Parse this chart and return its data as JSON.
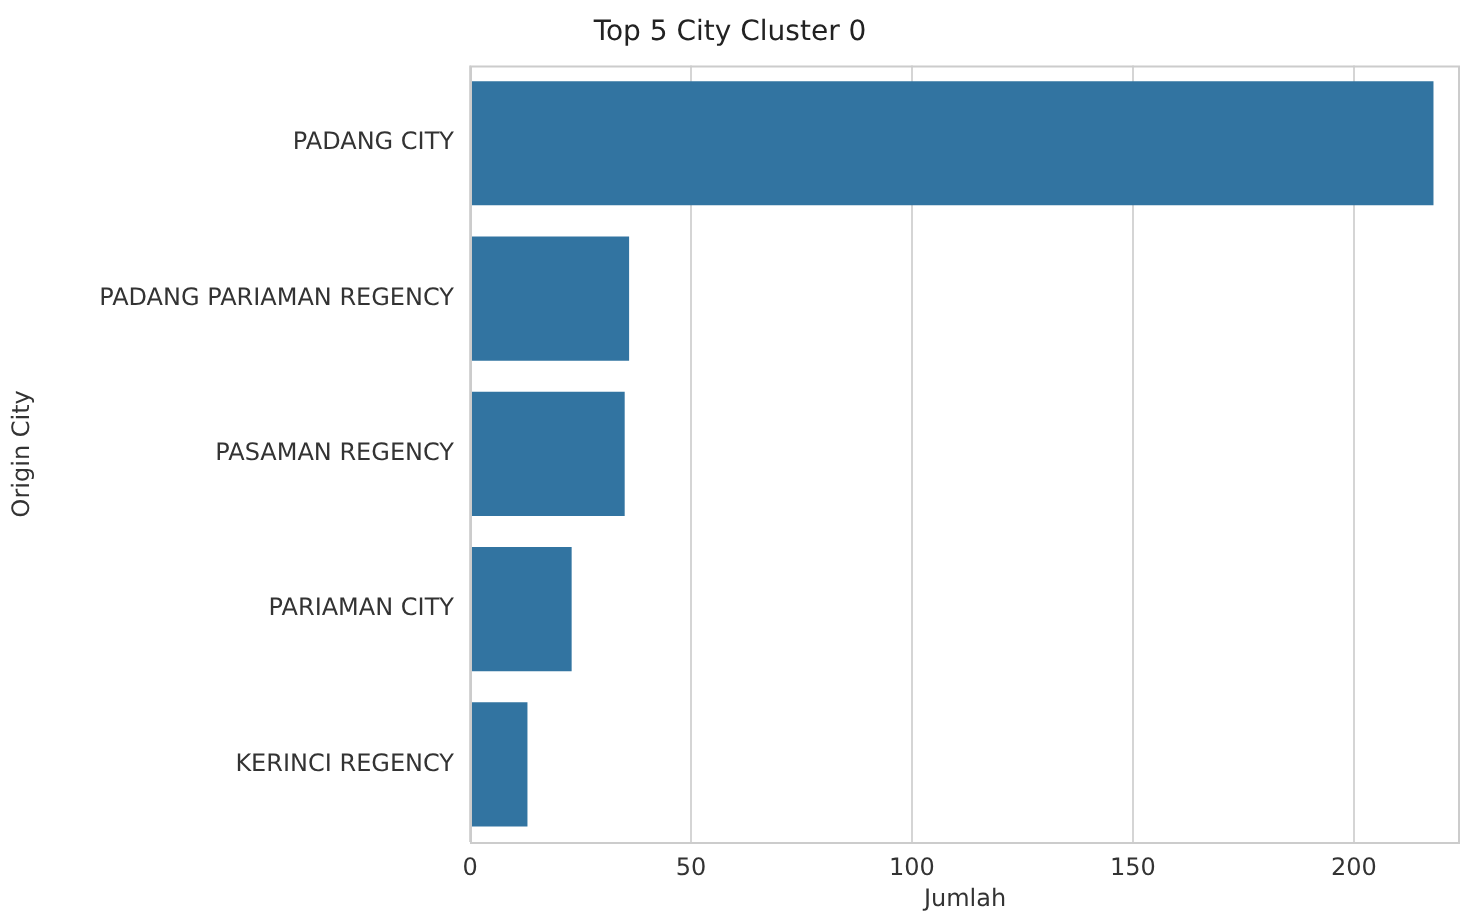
{
  "chart_data": {
    "type": "bar",
    "orientation": "horizontal",
    "title": "Top 5 City Cluster 0",
    "xlabel": "Jumlah",
    "ylabel": "Origin City",
    "categories": [
      "PADANG CITY",
      "PADANG PARIAMAN REGENCY",
      "PASAMAN REGENCY",
      "PARIAMAN CITY",
      "KERINCI REGENCY"
    ],
    "values": [
      218,
      36,
      35,
      23,
      13
    ],
    "color": "#3274a1",
    "xlim": [
      0,
      224
    ],
    "xticks": [
      0,
      50,
      100,
      150,
      200
    ],
    "grid": "x",
    "legend": false
  }
}
